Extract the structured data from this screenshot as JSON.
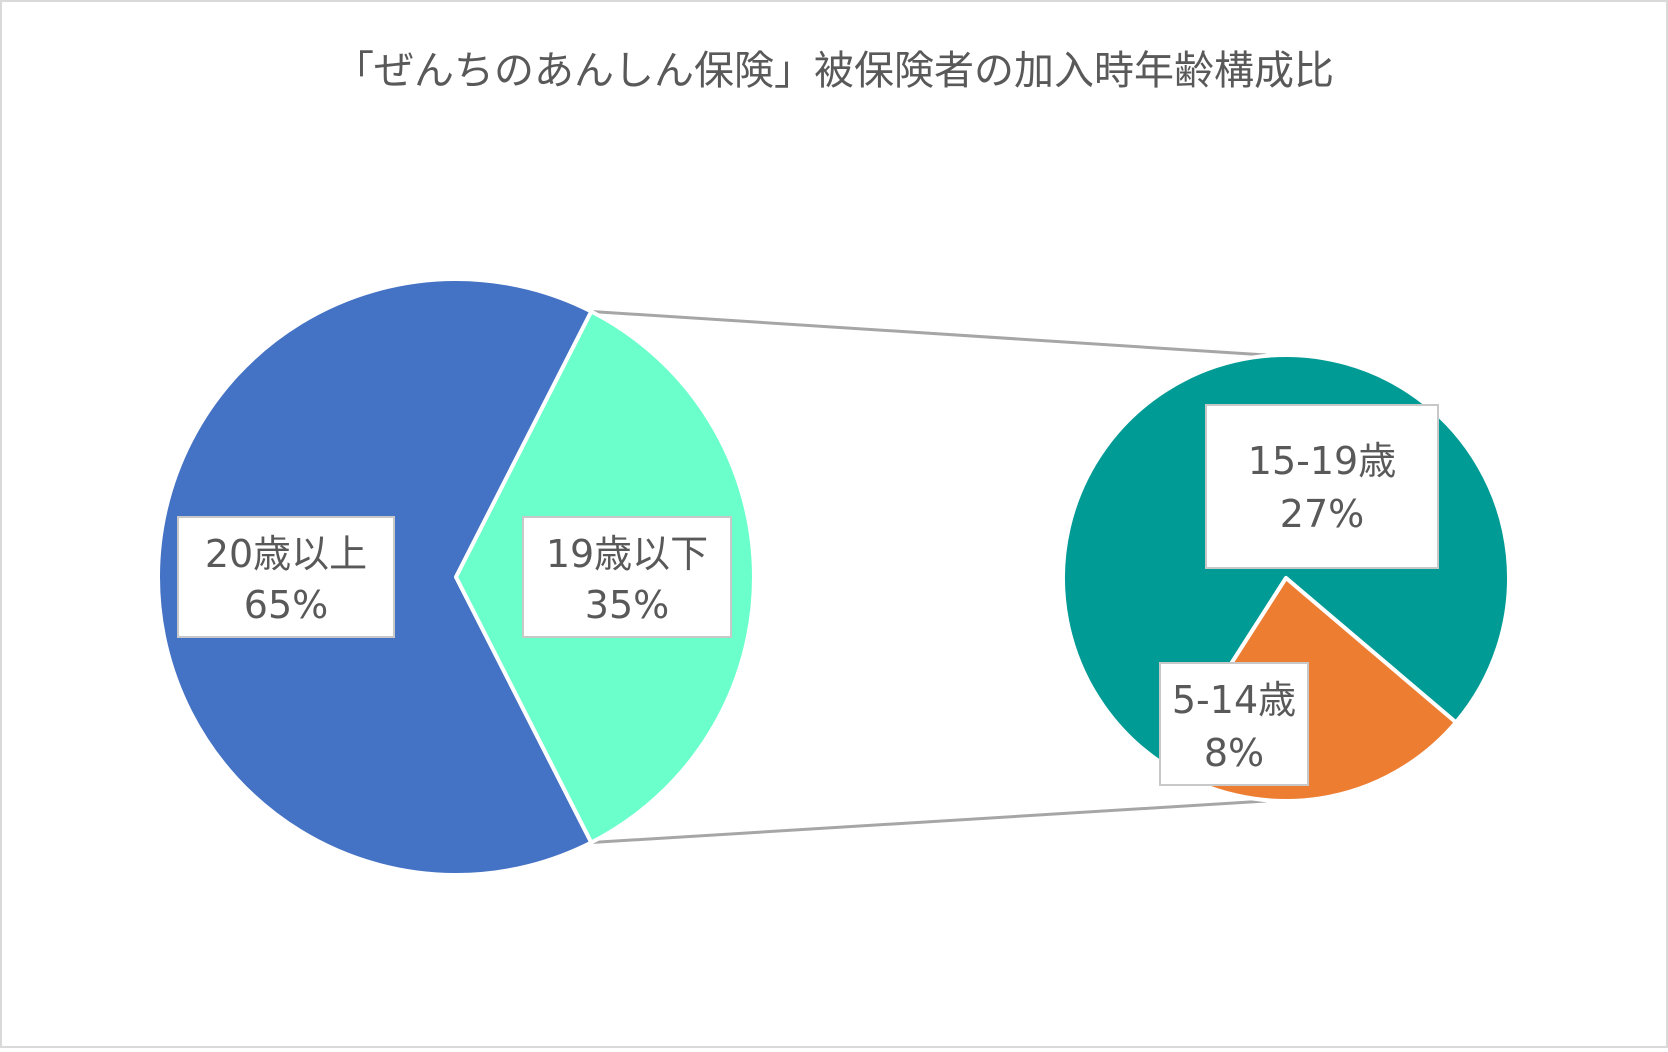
{
  "chart_data": {
    "type": "pie",
    "subtype": "pie-of-pie",
    "title": "「ぜんちのあんしん保険」被保険者の加入時年齢構成比",
    "main_pie": {
      "slices": [
        {
          "label": "20歳以上",
          "value": 65,
          "value_text": "65%",
          "color": "#4472C4"
        },
        {
          "label": "19歳以下",
          "value": 35,
          "value_text": "35%",
          "color": "#6BFFCB"
        }
      ]
    },
    "secondary_pie": {
      "expands": "19歳以下",
      "slices": [
        {
          "label": "15-19歳",
          "value": 27,
          "value_text": "27%",
          "color": "#009B95"
        },
        {
          "label": "5-14歳",
          "value": 8,
          "value_text": "8%",
          "color": "#ED7D31"
        }
      ]
    },
    "connector_color": "#A6A6A6",
    "frame_color": "#D9D9D9",
    "label_box_border": "#C8C8C8",
    "text_color": "#595959",
    "legend": "none"
  }
}
